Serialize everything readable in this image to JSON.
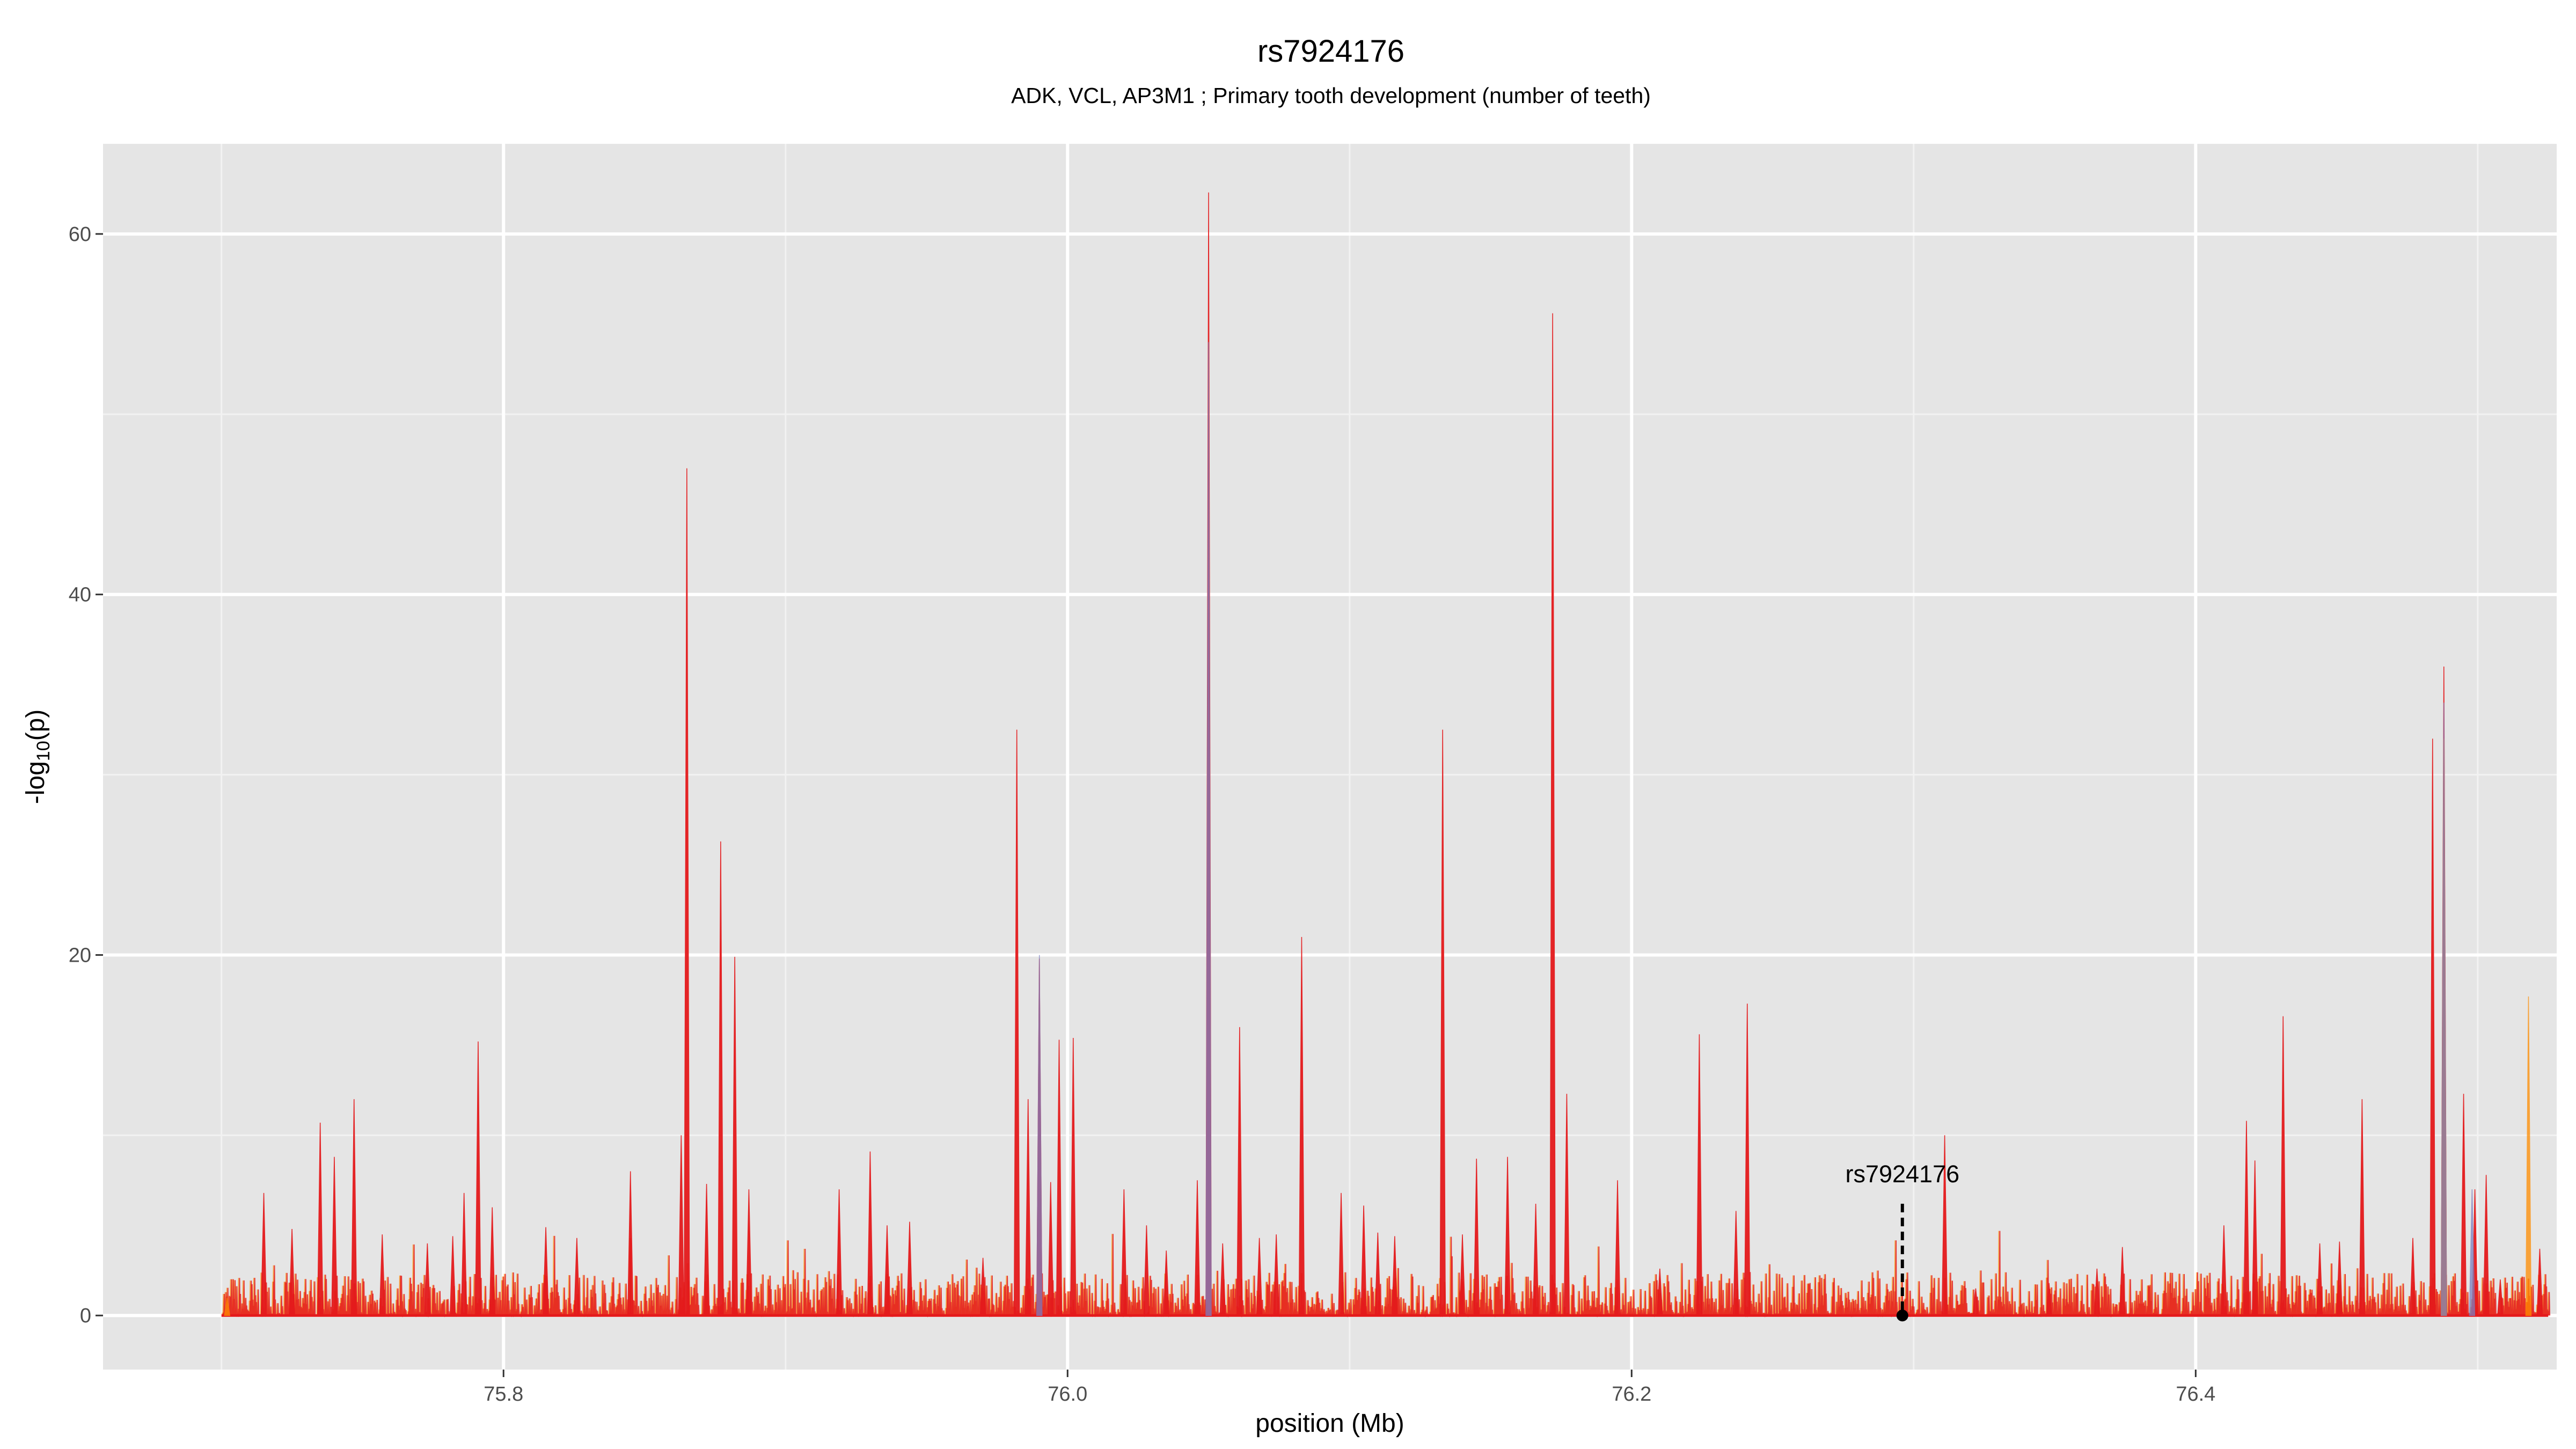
{
  "chart_data": {
    "type": "line",
    "title": "rs7924176",
    "subtitle": "ADK, VCL, AP3M1 ; Primary tooth development (number of teeth)",
    "xlabel": "position (Mb)",
    "ylabel_main": "-log",
    "ylabel_sub": "10",
    "ylabel_tail": "(p)",
    "xlim": [
      75.658,
      76.528
    ],
    "ylim": [
      -3,
      65
    ],
    "x_ticks": [
      75.8,
      76.0,
      76.2,
      76.4
    ],
    "x_tick_labels": [
      "75.8",
      "76.0",
      "76.2",
      "76.4"
    ],
    "y_ticks": [
      0,
      20,
      40,
      60
    ],
    "y_tick_labels": [
      "0",
      "20",
      "40",
      "60"
    ],
    "grid": true,
    "colors": {
      "panel": "#e5e5e5",
      "grid_major": "#ffffff",
      "grid_minor": "#f2f2f2",
      "signal_main": "#e41a1c",
      "signal_alt": "#ff8c00",
      "signal_blue": "#7b7fc0",
      "annotation": "#000000"
    },
    "series": [
      {
        "color": "#e41a1c",
        "peaks": [
          [
            75.715,
            6.8
          ],
          [
            75.725,
            4.8
          ],
          [
            75.735,
            10.7
          ],
          [
            75.74,
            8.8
          ],
          [
            75.747,
            12.0
          ],
          [
            75.757,
            4.5
          ],
          [
            75.773,
            4.0
          ],
          [
            75.782,
            4.4
          ],
          [
            75.786,
            6.8
          ],
          [
            75.791,
            15.2
          ],
          [
            75.796,
            6.0
          ],
          [
            75.815,
            4.9
          ],
          [
            75.826,
            4.3
          ],
          [
            75.845,
            8.0
          ],
          [
            75.863,
            10.0
          ],
          [
            75.865,
            47.0
          ],
          [
            75.872,
            7.3
          ],
          [
            75.877,
            26.3
          ],
          [
            75.882,
            19.9
          ],
          [
            75.887,
            7.0
          ],
          [
            75.919,
            7.0
          ],
          [
            75.93,
            9.1
          ],
          [
            75.936,
            5.0
          ],
          [
            75.944,
            5.2
          ],
          [
            75.97,
            3.2
          ],
          [
            75.982,
            32.5
          ],
          [
            75.986,
            12.0
          ],
          [
            75.99,
            19.8
          ],
          [
            75.994,
            7.4
          ],
          [
            75.997,
            15.3
          ],
          [
            76.002,
            15.4
          ],
          [
            76.02,
            7.0
          ],
          [
            76.028,
            5.0
          ],
          [
            76.035,
            3.6
          ],
          [
            76.046,
            7.5
          ],
          [
            76.05,
            62.3
          ],
          [
            76.055,
            4.0
          ],
          [
            76.061,
            16.0
          ],
          [
            76.068,
            4.3
          ],
          [
            76.074,
            4.5
          ],
          [
            76.083,
            21.0
          ],
          [
            76.097,
            6.8
          ],
          [
            76.105,
            6.1
          ],
          [
            76.11,
            4.6
          ],
          [
            76.116,
            4.4
          ],
          [
            76.133,
            32.5
          ],
          [
            76.14,
            4.5
          ],
          [
            76.145,
            8.7
          ],
          [
            76.156,
            8.8
          ],
          [
            76.166,
            6.2
          ],
          [
            76.172,
            55.6
          ],
          [
            76.177,
            12.3
          ],
          [
            76.195,
            7.5
          ],
          [
            76.21,
            2.6
          ],
          [
            76.224,
            15.6
          ],
          [
            76.237,
            5.8
          ],
          [
            76.241,
            17.3
          ],
          [
            76.311,
            10.0
          ],
          [
            76.322,
            1.5
          ],
          [
            76.348,
            1.8
          ],
          [
            76.365,
            2.6
          ],
          [
            76.374,
            3.8
          ],
          [
            76.41,
            5.0
          ],
          [
            76.418,
            10.8
          ],
          [
            76.421,
            8.6
          ],
          [
            76.431,
            16.6
          ],
          [
            76.444,
            4.0
          ],
          [
            76.451,
            4.1
          ],
          [
            76.459,
            12.0
          ],
          [
            76.477,
            4.3
          ],
          [
            76.484,
            32.0
          ],
          [
            76.488,
            36.0
          ],
          [
            76.495,
            12.3
          ],
          [
            76.499,
            7.0
          ],
          [
            76.503,
            7.8
          ],
          [
            76.508,
            2.0
          ],
          [
            76.522,
            3.7
          ]
        ]
      },
      {
        "color": "#ff8c00",
        "peaks": [
          [
            76.518,
            17.7
          ],
          [
            76.488,
            32.0
          ],
          [
            75.702,
            1.0
          ]
        ]
      },
      {
        "color": "#7b7fc0",
        "peaks": [
          [
            75.99,
            20.0
          ],
          [
            76.05,
            54.0
          ],
          [
            76.488,
            34.0
          ],
          [
            76.498,
            7.0
          ]
        ]
      }
    ],
    "annotations": [
      {
        "label": "rs7924176",
        "x": 76.296,
        "y": 0.0,
        "line_top_y": 6.2
      }
    ]
  }
}
